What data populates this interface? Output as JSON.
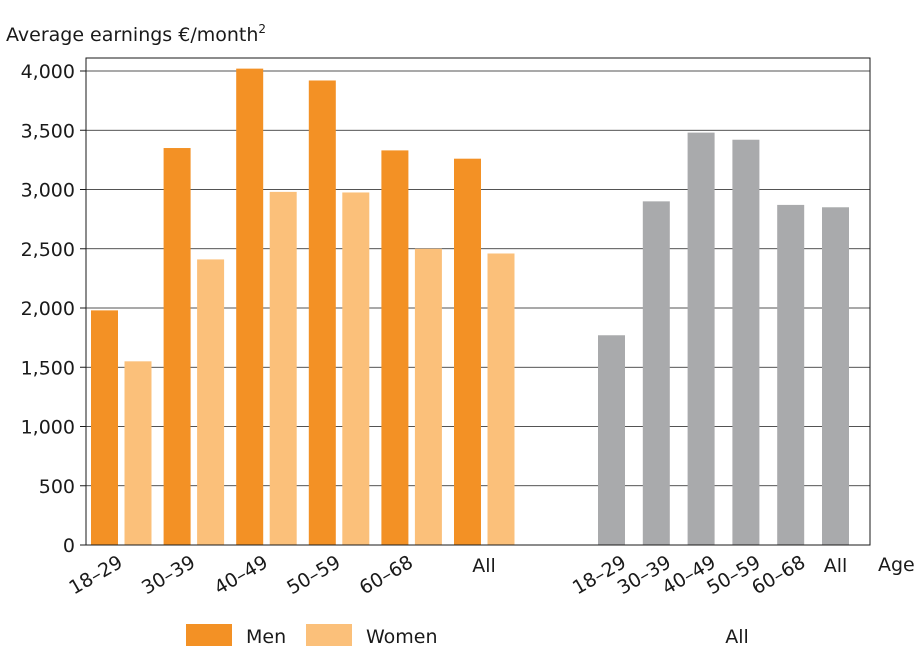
{
  "chart_data": {
    "type": "bar",
    "ylabel": "Average earnings €/month",
    "ylabel_superscript": "2",
    "xlabel": "Age",
    "ylim": [
      0,
      4000
    ],
    "yticks": [
      "0",
      "500",
      "1,000",
      "1,500",
      "2,000",
      "2,500",
      "3,000",
      "3,500",
      "4,000"
    ],
    "ytick_values": [
      0,
      500,
      1000,
      1500,
      2000,
      2500,
      3000,
      3500,
      4000
    ],
    "grid": true,
    "groups": [
      {
        "name": "",
        "categories": [
          "18–29",
          "30–39",
          "40–49",
          "50–59",
          "60–68",
          "All"
        ],
        "series": [
          {
            "name": "Men",
            "color": "#f39125",
            "values": [
              1980,
              3350,
              4020,
              3920,
              3330,
              3260
            ]
          },
          {
            "name": "Women",
            "color": "#fbc07a",
            "values": [
              1550,
              2410,
              2980,
              2975,
              2500,
              2460
            ]
          }
        ]
      },
      {
        "name": "All",
        "categories": [
          "18–29",
          "30–39",
          "40–49",
          "50–59",
          "60–68",
          "All"
        ],
        "series": [
          {
            "name": "",
            "color": "#a9aaac",
            "values": [
              1770,
              2900,
              3480,
              3420,
              2870,
              2850
            ]
          }
        ]
      }
    ],
    "legend": {
      "placement": "bottom",
      "items": [
        {
          "label": "Men",
          "color": "#f39125"
        },
        {
          "label": "Women",
          "color": "#fbc07a"
        }
      ],
      "group_label": "All"
    }
  }
}
